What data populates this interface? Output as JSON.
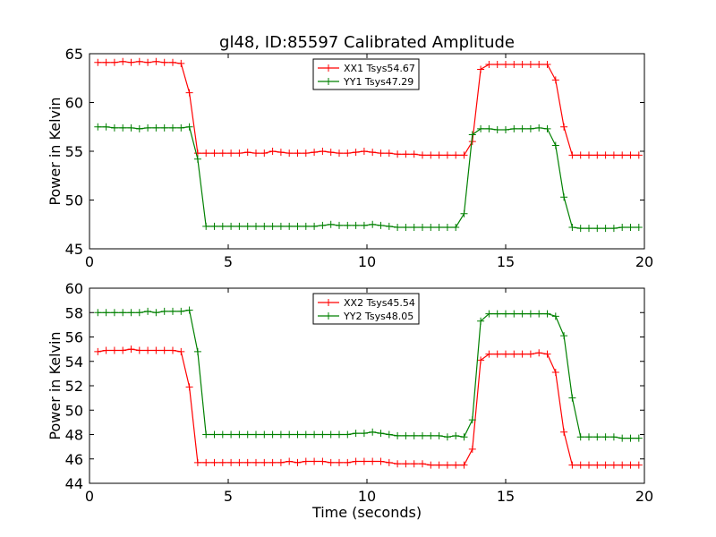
{
  "figure_title": "gl48, ID:85597 Calibrated Amplitude",
  "chart_data": [
    {
      "type": "line",
      "title": "gl48, ID:85597 Calibrated Amplitude",
      "xlabel": "",
      "ylabel": "Power in Kelvin",
      "xlim": [
        0,
        20
      ],
      "ylim": [
        45,
        65
      ],
      "xticks": [
        0,
        5,
        10,
        15,
        20
      ],
      "yticks": [
        45,
        50,
        55,
        60,
        65
      ],
      "legend_position": "upper-center",
      "series": [
        {
          "name": "XX1 Tsys54.67",
          "color": "#ff0000",
          "x": [
            0.3,
            0.6,
            0.9,
            1.2,
            1.5,
            1.8,
            2.1,
            2.4,
            2.7,
            3.0,
            3.3,
            3.6,
            3.9,
            4.2,
            4.5,
            4.8,
            5.1,
            5.4,
            5.7,
            6.0,
            6.3,
            6.6,
            6.9,
            7.2,
            7.5,
            7.8,
            8.1,
            8.4,
            8.7,
            9.0,
            9.3,
            9.6,
            9.9,
            10.2,
            10.5,
            10.8,
            11.1,
            11.4,
            11.7,
            12.0,
            12.3,
            12.6,
            12.9,
            13.2,
            13.5,
            13.8,
            14.1,
            14.4,
            14.7,
            15.0,
            15.3,
            15.6,
            15.9,
            16.2,
            16.5,
            16.8,
            17.1,
            17.4,
            17.7,
            18.0,
            18.3,
            18.6,
            18.9,
            19.2,
            19.5,
            19.8
          ],
          "values": [
            64.1,
            64.1,
            64.1,
            64.2,
            64.1,
            64.2,
            64.1,
            64.2,
            64.1,
            64.1,
            64.0,
            61.0,
            54.8,
            54.8,
            54.8,
            54.8,
            54.8,
            54.8,
            54.9,
            54.8,
            54.8,
            55.0,
            54.9,
            54.8,
            54.8,
            54.8,
            54.9,
            55.0,
            54.9,
            54.8,
            54.8,
            54.9,
            55.0,
            54.9,
            54.8,
            54.8,
            54.7,
            54.7,
            54.7,
            54.6,
            54.6,
            54.6,
            54.6,
            54.6,
            54.6,
            56.0,
            63.4,
            63.9,
            63.9,
            63.9,
            63.9,
            63.9,
            63.9,
            63.9,
            63.9,
            62.3,
            57.5,
            54.6,
            54.6,
            54.6,
            54.6,
            54.6,
            54.6,
            54.6,
            54.6,
            54.6
          ]
        },
        {
          "name": "YY1 Tsys47.29",
          "color": "#008000",
          "x": [
            0.3,
            0.6,
            0.9,
            1.2,
            1.5,
            1.8,
            2.1,
            2.4,
            2.7,
            3.0,
            3.3,
            3.6,
            3.9,
            4.2,
            4.5,
            4.8,
            5.1,
            5.4,
            5.7,
            6.0,
            6.3,
            6.6,
            6.9,
            7.2,
            7.5,
            7.8,
            8.1,
            8.4,
            8.7,
            9.0,
            9.3,
            9.6,
            9.9,
            10.2,
            10.5,
            10.8,
            11.1,
            11.4,
            11.7,
            12.0,
            12.3,
            12.6,
            12.9,
            13.2,
            13.5,
            13.8,
            14.1,
            14.4,
            14.7,
            15.0,
            15.3,
            15.6,
            15.9,
            16.2,
            16.5,
            16.8,
            17.1,
            17.4,
            17.7,
            18.0,
            18.3,
            18.6,
            18.9,
            19.2,
            19.5,
            19.8
          ],
          "values": [
            57.5,
            57.5,
            57.4,
            57.4,
            57.4,
            57.3,
            57.4,
            57.4,
            57.4,
            57.4,
            57.4,
            57.5,
            54.2,
            47.3,
            47.3,
            47.3,
            47.3,
            47.3,
            47.3,
            47.3,
            47.3,
            47.3,
            47.3,
            47.3,
            47.3,
            47.3,
            47.3,
            47.4,
            47.5,
            47.4,
            47.4,
            47.4,
            47.4,
            47.5,
            47.4,
            47.3,
            47.2,
            47.2,
            47.2,
            47.2,
            47.2,
            47.2,
            47.2,
            47.2,
            48.6,
            56.7,
            57.3,
            57.3,
            57.2,
            57.2,
            57.3,
            57.3,
            57.3,
            57.4,
            57.3,
            55.6,
            50.3,
            47.2,
            47.1,
            47.1,
            47.1,
            47.1,
            47.1,
            47.2,
            47.2,
            47.2
          ]
        }
      ]
    },
    {
      "type": "line",
      "title": "",
      "xlabel": "Time (seconds)",
      "ylabel": "Power in Kelvin",
      "xlim": [
        0,
        20
      ],
      "ylim": [
        44,
        60
      ],
      "xticks": [
        0,
        5,
        10,
        15,
        20
      ],
      "yticks": [
        44,
        46,
        48,
        50,
        52,
        54,
        56,
        58,
        60
      ],
      "legend_position": "upper-center",
      "series": [
        {
          "name": "XX2 Tsys45.54",
          "color": "#ff0000",
          "x": [
            0.3,
            0.6,
            0.9,
            1.2,
            1.5,
            1.8,
            2.1,
            2.4,
            2.7,
            3.0,
            3.3,
            3.6,
            3.9,
            4.2,
            4.5,
            4.8,
            5.1,
            5.4,
            5.7,
            6.0,
            6.3,
            6.6,
            6.9,
            7.2,
            7.5,
            7.8,
            8.1,
            8.4,
            8.7,
            9.0,
            9.3,
            9.6,
            9.9,
            10.2,
            10.5,
            10.8,
            11.1,
            11.4,
            11.7,
            12.0,
            12.3,
            12.6,
            12.9,
            13.2,
            13.5,
            13.8,
            14.1,
            14.4,
            14.7,
            15.0,
            15.3,
            15.6,
            15.9,
            16.2,
            16.5,
            16.8,
            17.1,
            17.4,
            17.7,
            18.0,
            18.3,
            18.6,
            18.9,
            19.2,
            19.5,
            19.8
          ],
          "values": [
            54.8,
            54.9,
            54.9,
            54.9,
            55.0,
            54.9,
            54.9,
            54.9,
            54.9,
            54.9,
            54.8,
            51.9,
            45.7,
            45.7,
            45.7,
            45.7,
            45.7,
            45.7,
            45.7,
            45.7,
            45.7,
            45.7,
            45.7,
            45.8,
            45.7,
            45.8,
            45.8,
            45.8,
            45.7,
            45.7,
            45.7,
            45.8,
            45.8,
            45.8,
            45.8,
            45.7,
            45.6,
            45.6,
            45.6,
            45.6,
            45.5,
            45.5,
            45.5,
            45.5,
            45.5,
            46.8,
            54.1,
            54.6,
            54.6,
            54.6,
            54.6,
            54.6,
            54.6,
            54.7,
            54.6,
            53.1,
            48.2,
            45.5,
            45.5,
            45.5,
            45.5,
            45.5,
            45.5,
            45.5,
            45.5,
            45.5
          ]
        },
        {
          "name": "YY2 Tsys48.05",
          "color": "#008000",
          "x": [
            0.3,
            0.6,
            0.9,
            1.2,
            1.5,
            1.8,
            2.1,
            2.4,
            2.7,
            3.0,
            3.3,
            3.6,
            3.9,
            4.2,
            4.5,
            4.8,
            5.1,
            5.4,
            5.7,
            6.0,
            6.3,
            6.6,
            6.9,
            7.2,
            7.5,
            7.8,
            8.1,
            8.4,
            8.7,
            9.0,
            9.3,
            9.6,
            9.9,
            10.2,
            10.5,
            10.8,
            11.1,
            11.4,
            11.7,
            12.0,
            12.3,
            12.6,
            12.9,
            13.2,
            13.5,
            13.8,
            14.1,
            14.4,
            14.7,
            15.0,
            15.3,
            15.6,
            15.9,
            16.2,
            16.5,
            16.8,
            17.1,
            17.4,
            17.7,
            18.0,
            18.3,
            18.6,
            18.9,
            19.2,
            19.5,
            19.8
          ],
          "values": [
            58.0,
            58.0,
            58.0,
            58.0,
            58.0,
            58.0,
            58.1,
            58.0,
            58.1,
            58.1,
            58.1,
            58.2,
            54.8,
            48.0,
            48.0,
            48.0,
            48.0,
            48.0,
            48.0,
            48.0,
            48.0,
            48.0,
            48.0,
            48.0,
            48.0,
            48.0,
            48.0,
            48.0,
            48.0,
            48.0,
            48.0,
            48.1,
            48.1,
            48.2,
            48.1,
            48.0,
            47.9,
            47.9,
            47.9,
            47.9,
            47.9,
            47.9,
            47.8,
            47.9,
            47.8,
            49.2,
            57.3,
            57.9,
            57.9,
            57.9,
            57.9,
            57.9,
            57.9,
            57.9,
            57.9,
            57.7,
            56.1,
            51.0,
            47.8,
            47.8,
            47.8,
            47.8,
            47.8,
            47.7,
            47.7,
            47.7
          ]
        }
      ]
    }
  ]
}
